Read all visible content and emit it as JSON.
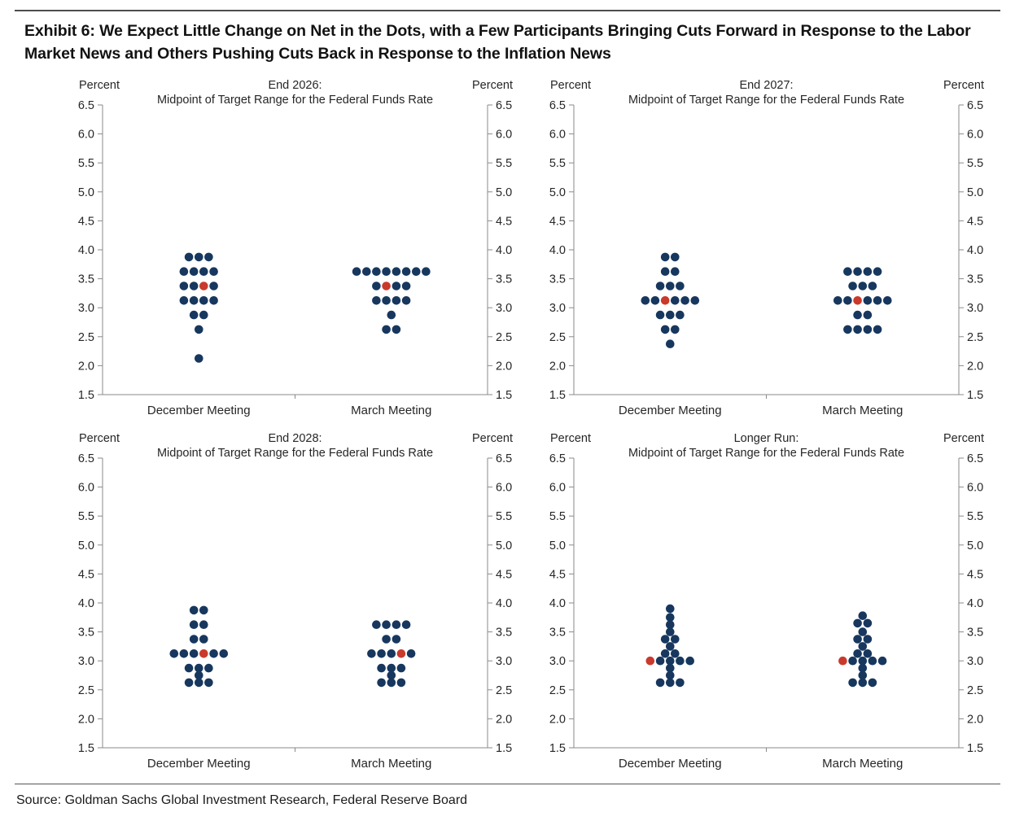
{
  "page": {
    "title": "Exhibit 6: We Expect Little Change on Net in the Dots, with a Few Participants Bringing Cuts Forward in Response to the Labor Market News and Others Pushing Cuts Back in Response to the Inflation News",
    "source": "Source: Goldman Sachs Global Investment Research, Federal Reserve Board"
  },
  "colors": {
    "dot": "#17375e",
    "highlight_dot": "#c93a2c",
    "axis": "#8a8a8a",
    "text": "#262626"
  },
  "chart_data": [
    {
      "type": "scatter",
      "title": "End 2026:",
      "subtitle": "Midpoint of Target Range for the Federal Funds Rate",
      "ylabel_left": "Percent",
      "ylabel_right": "Percent",
      "ylim": [
        1.5,
        6.5
      ],
      "ytick_step": 0.5,
      "x_categories": [
        "December Meeting",
        "March Meeting"
      ],
      "series": [
        {
          "category": "December Meeting",
          "rows": [
            {
              "rate": 3.875,
              "count": 3
            },
            {
              "rate": 3.625,
              "count": 4
            },
            {
              "rate": 3.375,
              "count": 4,
              "red_index": 2
            },
            {
              "rate": 3.125,
              "count": 4
            },
            {
              "rate": 2.875,
              "count": 2
            },
            {
              "rate": 2.625,
              "count": 1
            },
            {
              "rate": 2.125,
              "count": 1
            }
          ]
        },
        {
          "category": "March Meeting",
          "rows": [
            {
              "rate": 3.625,
              "count": 8
            },
            {
              "rate": 3.375,
              "count": 4,
              "red_index": 1
            },
            {
              "rate": 3.125,
              "count": 4
            },
            {
              "rate": 2.875,
              "count": 1
            },
            {
              "rate": 2.625,
              "count": 2
            }
          ]
        }
      ]
    },
    {
      "type": "scatter",
      "title": "End 2027:",
      "subtitle": "Midpoint of Target Range for the Federal Funds Rate",
      "ylabel_left": "Percent",
      "ylabel_right": "Percent",
      "ylim": [
        1.5,
        6.5
      ],
      "ytick_step": 0.5,
      "x_categories": [
        "December Meeting",
        "March Meeting"
      ],
      "series": [
        {
          "category": "December Meeting",
          "rows": [
            {
              "rate": 3.875,
              "count": 2
            },
            {
              "rate": 3.625,
              "count": 2
            },
            {
              "rate": 3.375,
              "count": 3
            },
            {
              "rate": 3.125,
              "count": 6,
              "red_index": 2
            },
            {
              "rate": 2.875,
              "count": 3
            },
            {
              "rate": 2.625,
              "count": 2
            },
            {
              "rate": 2.375,
              "count": 1
            }
          ]
        },
        {
          "category": "March Meeting",
          "rows": [
            {
              "rate": 3.625,
              "count": 4
            },
            {
              "rate": 3.375,
              "count": 3
            },
            {
              "rate": 3.125,
              "count": 6,
              "red_index": 2
            },
            {
              "rate": 2.875,
              "count": 2
            },
            {
              "rate": 2.625,
              "count": 4
            }
          ]
        }
      ]
    },
    {
      "type": "scatter",
      "title": "End 2028:",
      "subtitle": "Midpoint of Target Range for the Federal Funds Rate",
      "ylabel_left": "Percent",
      "ylabel_right": "Percent",
      "ylim": [
        1.5,
        6.5
      ],
      "ytick_step": 0.5,
      "x_categories": [
        "December Meeting",
        "March Meeting"
      ],
      "series": [
        {
          "category": "December Meeting",
          "rows": [
            {
              "rate": 3.875,
              "count": 2
            },
            {
              "rate": 3.625,
              "count": 2
            },
            {
              "rate": 3.375,
              "count": 2
            },
            {
              "rate": 3.125,
              "count": 6,
              "red_index": 3
            },
            {
              "rate": 2.875,
              "count": 3
            },
            {
              "rate": 2.75,
              "count": 1
            },
            {
              "rate": 2.625,
              "count": 3
            }
          ]
        },
        {
          "category": "March Meeting",
          "rows": [
            {
              "rate": 3.625,
              "count": 4
            },
            {
              "rate": 3.375,
              "count": 2
            },
            {
              "rate": 3.125,
              "count": 5,
              "red_index": 3
            },
            {
              "rate": 2.875,
              "count": 3
            },
            {
              "rate": 2.75,
              "count": 1
            },
            {
              "rate": 2.625,
              "count": 3
            }
          ]
        }
      ]
    },
    {
      "type": "scatter",
      "title": "Longer Run:",
      "subtitle": "Midpoint of Target Range for the Federal Funds Rate",
      "ylabel_left": "Percent",
      "ylabel_right": "Percent",
      "ylim": [
        1.5,
        6.5
      ],
      "ytick_step": 0.5,
      "x_categories": [
        "December Meeting",
        "March Meeting"
      ],
      "series": [
        {
          "category": "December Meeting",
          "rows": [
            {
              "rate": 3.9,
              "count": 1
            },
            {
              "rate": 3.75,
              "count": 1
            },
            {
              "rate": 3.625,
              "count": 1
            },
            {
              "rate": 3.5,
              "count": 1
            },
            {
              "rate": 3.375,
              "count": 2
            },
            {
              "rate": 3.25,
              "count": 1
            },
            {
              "rate": 3.125,
              "count": 2
            },
            {
              "rate": 3.0,
              "count": 5,
              "red_index": 0
            },
            {
              "rate": 2.875,
              "count": 1
            },
            {
              "rate": 2.75,
              "count": 1
            },
            {
              "rate": 2.625,
              "count": 3
            }
          ]
        },
        {
          "category": "March Meeting",
          "rows": [
            {
              "rate": 3.78,
              "count": 1
            },
            {
              "rate": 3.65,
              "count": 2
            },
            {
              "rate": 3.5,
              "count": 1
            },
            {
              "rate": 3.375,
              "count": 2
            },
            {
              "rate": 3.25,
              "count": 1
            },
            {
              "rate": 3.125,
              "count": 2
            },
            {
              "rate": 3.0,
              "count": 5,
              "red_index": 0
            },
            {
              "rate": 2.875,
              "count": 1
            },
            {
              "rate": 2.75,
              "count": 1
            },
            {
              "rate": 2.625,
              "count": 3
            }
          ]
        }
      ]
    }
  ]
}
